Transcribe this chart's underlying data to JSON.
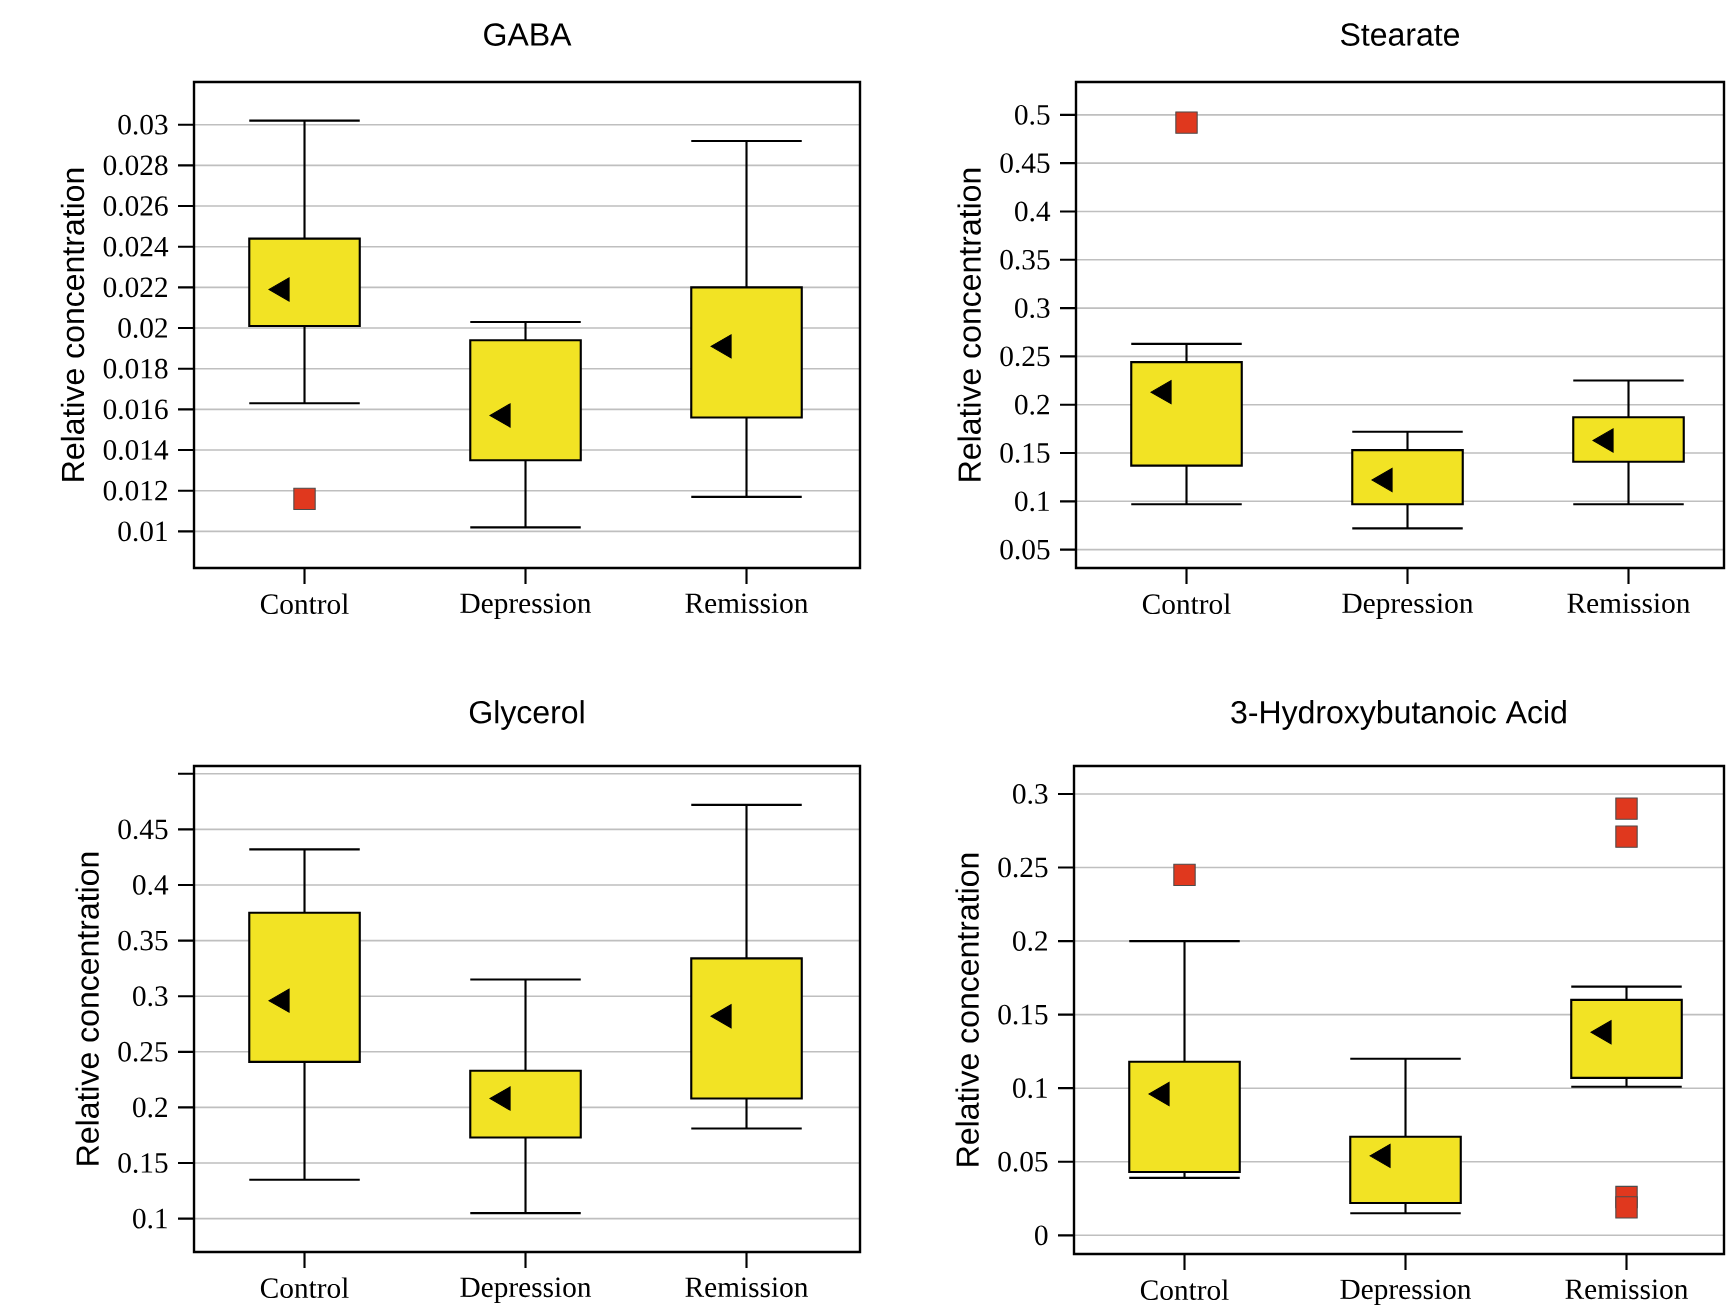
{
  "chart_data": [
    {
      "type": "box",
      "title": "GABA",
      "ylabel": "Relative concentration",
      "categories": [
        "Control",
        "Depression",
        "Remission"
      ],
      "ylim": [
        0.0082,
        0.0321
      ],
      "yticks": [
        0.01,
        0.012,
        0.014,
        0.016,
        0.018,
        0.02,
        0.022,
        0.024,
        0.026,
        0.028,
        0.03
      ],
      "grid": "y",
      "series": [
        {
          "color": "#f2e324",
          "boxes": [
            {
              "low": 0.0163,
              "q1": 0.0201,
              "median": 0.0219,
              "q3": 0.0244,
              "high": 0.0302,
              "outliers": [
                0.0116
              ]
            },
            {
              "low": 0.0102,
              "q1": 0.0135,
              "median": 0.0157,
              "q3": 0.0194,
              "high": 0.0203
            },
            {
              "low": 0.0117,
              "q1": 0.0156,
              "median": 0.0191,
              "q3": 0.022,
              "high": 0.0292
            }
          ]
        }
      ]
    },
    {
      "type": "box",
      "title": "Stearate",
      "ylabel": "Relative concentration",
      "categories": [
        "Control",
        "Depression",
        "Remission"
      ],
      "ylim": [
        0.031,
        0.534
      ],
      "yticks": [
        0.05,
        0.1,
        0.15,
        0.2,
        0.25,
        0.3,
        0.35,
        0.4,
        0.45,
        0.5
      ],
      "grid": "y",
      "series": [
        {
          "color": "#f2e324",
          "boxes": [
            {
              "low": 0.097,
              "q1": 0.137,
              "median": 0.213,
              "q3": 0.244,
              "high": 0.263,
              "outliers": [
                0.492
              ]
            },
            {
              "low": 0.072,
              "q1": 0.097,
              "median": 0.122,
              "q3": 0.153,
              "high": 0.172
            },
            {
              "low": 0.097,
              "q1": 0.141,
              "median": 0.163,
              "q3": 0.187,
              "high": 0.225
            }
          ]
        }
      ]
    },
    {
      "type": "box",
      "title": "Glycerol",
      "ylabel": "Relative concentration",
      "categories": [
        "Control",
        "Depression",
        "Remission"
      ],
      "ylim": [
        0.07,
        0.507
      ],
      "yticks": [
        0.1,
        0.15,
        0.2,
        0.25,
        0.3,
        0.35,
        0.4,
        0.45,
        {
          "value": 0.5,
          "label": null
        }
      ],
      "grid": "y",
      "series": [
        {
          "color": "#f2e324",
          "boxes": [
            {
              "low": 0.135,
              "q1": 0.241,
              "median": 0.296,
              "q3": 0.375,
              "high": 0.432
            },
            {
              "low": 0.105,
              "q1": 0.173,
              "median": 0.208,
              "q3": 0.233,
              "high": 0.315
            },
            {
              "low": 0.181,
              "q1": 0.208,
              "median": 0.282,
              "q3": 0.334,
              "high": 0.472
            }
          ]
        }
      ]
    },
    {
      "type": "box",
      "title": "3-Hydroxybutanoic Acid",
      "ylabel": "Relative concentration",
      "categories": [
        "Control",
        "Depression",
        "Remission"
      ],
      "ylim": [
        -0.0127,
        0.319
      ],
      "yticks": [
        0,
        0.05,
        0.1,
        0.15,
        0.2,
        0.25,
        0.3
      ],
      "grid": "y",
      "series": [
        {
          "color": "#f2e324",
          "boxes": [
            {
              "low": 0.039,
              "q1": 0.043,
              "median": 0.096,
              "q3": 0.118,
              "high": 0.2,
              "outliers": [
                0.245
              ]
            },
            {
              "low": 0.015,
              "q1": 0.022,
              "median": 0.054,
              "q3": 0.067,
              "high": 0.12
            },
            {
              "low": 0.101,
              "q1": 0.107,
              "median": 0.138,
              "q3": 0.16,
              "high": 0.169,
              "outliers": [
                0.29,
                0.271,
                0.026,
                0.019
              ]
            }
          ]
        }
      ]
    }
  ]
}
